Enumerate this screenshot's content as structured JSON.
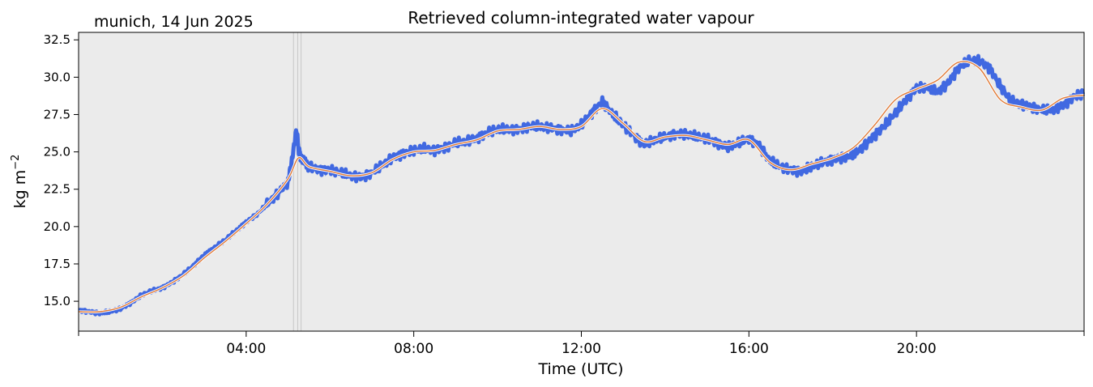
{
  "header": {
    "site_date": "munich, 14 Jun 2025"
  },
  "chart_data": {
    "type": "line",
    "title": "Retrieved column-integrated water vapour",
    "xlabel": "Time (UTC)",
    "ylabel_base": "kg m",
    "ylabel_exp": "−2",
    "xlim": [
      0,
      24
    ],
    "ylim": [
      13.0,
      33.0
    ],
    "yticks": [
      15.0,
      17.5,
      20.0,
      22.5,
      25.0,
      27.5,
      30.0,
      32.5
    ],
    "ytick_labels": [
      "15.0",
      "17.5",
      "20.0",
      "22.5",
      "25.0",
      "27.5",
      "30.0",
      "32.5"
    ],
    "xticks": [
      4,
      8,
      12,
      16,
      20
    ],
    "xtick_labels": [
      "04:00",
      "08:00",
      "12:00",
      "16:00",
      "20:00"
    ],
    "minor_xticks": [
      0,
      24
    ],
    "plot_background": "#ebebeb",
    "grid": false,
    "colors": {
      "raw": "#4169e1",
      "smooth_outline": "#ffffff",
      "smooth": "#e07b39",
      "flag_lines": "#c8c8c8"
    },
    "flag_times": [
      5.13,
      5.23,
      5.31
    ],
    "series": [
      {
        "role": "raw",
        "x": [
          0.0,
          0.25,
          0.5,
          0.75,
          1.0,
          1.25,
          1.5,
          1.75,
          2.0,
          2.25,
          2.5,
          2.75,
          3.0,
          3.25,
          3.5,
          3.75,
          4.0,
          4.25,
          4.5,
          4.75,
          5.0,
          5.1,
          5.2,
          5.25,
          5.3,
          5.4,
          5.5,
          5.75,
          6.0,
          6.25,
          6.5,
          6.75,
          7.0,
          7.25,
          7.5,
          7.75,
          8.0,
          8.25,
          8.5,
          8.75,
          9.0,
          9.25,
          9.5,
          9.75,
          10.0,
          10.25,
          10.5,
          10.75,
          11.0,
          11.25,
          11.5,
          11.75,
          12.0,
          12.25,
          12.5,
          12.75,
          13.0,
          13.25,
          13.5,
          13.75,
          14.0,
          14.25,
          14.5,
          14.75,
          15.0,
          15.25,
          15.5,
          15.75,
          16.0,
          16.25,
          16.5,
          16.75,
          17.0,
          17.25,
          17.5,
          17.75,
          18.0,
          18.25,
          18.5,
          18.75,
          19.0,
          19.25,
          19.5,
          19.75,
          20.0,
          20.25,
          20.5,
          20.75,
          21.0,
          21.25,
          21.5,
          21.75,
          22.0,
          22.25,
          22.5,
          22.75,
          23.0,
          23.25,
          23.5,
          23.75,
          24.0
        ],
        "y": [
          14.4,
          14.3,
          14.2,
          14.3,
          14.5,
          14.9,
          15.4,
          15.7,
          15.9,
          16.3,
          16.8,
          17.4,
          18.1,
          18.6,
          19.1,
          19.7,
          20.3,
          20.8,
          21.5,
          22.2,
          23.0,
          24.6,
          26.5,
          25.2,
          24.7,
          24.3,
          24.0,
          23.8,
          23.8,
          23.6,
          23.4,
          23.3,
          23.6,
          24.1,
          24.6,
          24.9,
          25.1,
          25.2,
          25.1,
          25.3,
          25.6,
          25.7,
          25.9,
          26.3,
          26.5,
          26.5,
          26.5,
          26.7,
          26.7,
          26.6,
          26.5,
          26.4,
          26.8,
          27.6,
          28.4,
          27.5,
          26.8,
          26.1,
          25.5,
          25.8,
          26.0,
          26.2,
          26.2,
          26.0,
          25.9,
          25.6,
          25.3,
          25.6,
          25.9,
          25.4,
          24.4,
          24.0,
          23.8,
          23.7,
          24.0,
          24.3,
          24.5,
          24.6,
          24.8,
          25.4,
          26.1,
          26.8,
          27.6,
          28.5,
          29.3,
          29.3,
          29.0,
          29.6,
          30.6,
          31.1,
          31.1,
          30.6,
          29.4,
          28.4,
          28.2,
          28.0,
          27.8,
          27.8,
          28.1,
          28.7,
          28.9
        ]
      },
      {
        "role": "smoothed",
        "x": [
          0.0,
          0.5,
          1.0,
          1.5,
          2.0,
          2.5,
          3.0,
          3.5,
          4.0,
          4.5,
          5.0,
          5.25,
          5.5,
          6.0,
          6.5,
          7.0,
          7.5,
          8.0,
          8.5,
          9.0,
          9.5,
          10.0,
          10.5,
          11.0,
          11.5,
          12.0,
          12.5,
          13.0,
          13.5,
          14.0,
          14.5,
          15.0,
          15.5,
          16.0,
          16.5,
          17.0,
          17.5,
          18.0,
          18.5,
          19.0,
          19.5,
          20.0,
          20.5,
          21.0,
          21.5,
          22.0,
          22.5,
          23.0,
          23.5,
          24.0
        ],
        "y": [
          14.3,
          14.3,
          14.6,
          15.3,
          15.9,
          16.7,
          17.9,
          19.0,
          20.2,
          21.5,
          23.2,
          24.6,
          24.0,
          23.7,
          23.4,
          23.6,
          24.5,
          25.0,
          25.1,
          25.5,
          25.8,
          26.4,
          26.5,
          26.7,
          26.5,
          26.7,
          27.9,
          26.9,
          25.7,
          26.0,
          26.1,
          25.8,
          25.5,
          25.8,
          24.3,
          23.8,
          24.2,
          24.6,
          25.3,
          26.8,
          28.5,
          29.2,
          29.8,
          31.0,
          30.6,
          28.5,
          28.0,
          27.8,
          28.6,
          28.8
        ]
      }
    ]
  }
}
